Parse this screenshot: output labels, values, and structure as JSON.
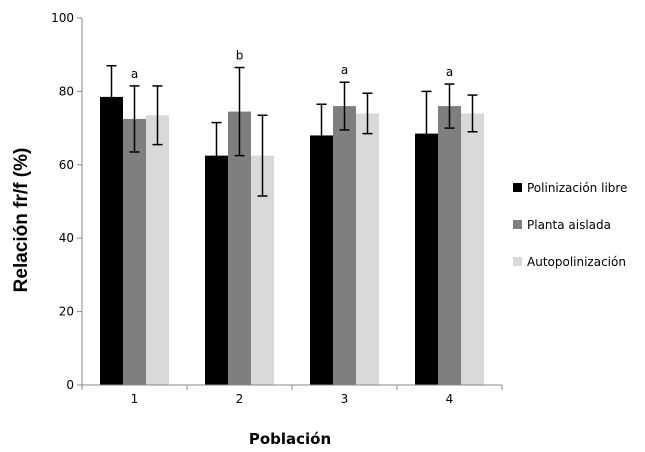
{
  "chart_data": {
    "type": "bar",
    "title": "",
    "xlabel": "Población",
    "ylabel": "Relación fr/f (%)",
    "ylim": [
      0,
      100
    ],
    "yticks": [
      0,
      20,
      40,
      60,
      80,
      100
    ],
    "categories": [
      "1",
      "2",
      "3",
      "4"
    ],
    "series": [
      {
        "name": "Polinización libre",
        "color": "#000000",
        "values": [
          78.5,
          62.5,
          68.0,
          68.5
        ],
        "errors": [
          8.5,
          9.0,
          8.5,
          11.5
        ]
      },
      {
        "name": "Planta aislada",
        "color": "#7f7f7f",
        "values": [
          72.5,
          74.5,
          76.0,
          76.0
        ],
        "errors": [
          9.0,
          12.0,
          6.5,
          6.0
        ]
      },
      {
        "name": "Autopolinización",
        "color": "#d9d9d9",
        "values": [
          73.5,
          62.5,
          74.0,
          74.0
        ],
        "errors": [
          8.0,
          11.0,
          5.5,
          5.0
        ]
      }
    ],
    "annotations": [
      "a",
      "b",
      "a",
      "a"
    ],
    "legend_position": "right",
    "grid": false
  }
}
